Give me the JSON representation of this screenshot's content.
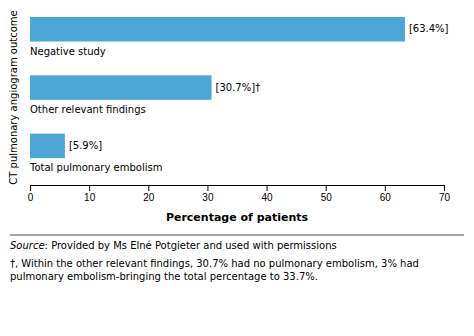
{
  "chart_data": {
    "type": "bar",
    "orientation": "horizontal",
    "categories": [
      "Negative study",
      "Other relevant findings",
      "Total pulmonary embolism"
    ],
    "values": [
      63.4,
      30.7,
      5.9
    ],
    "value_labels": [
      "[63.4%]",
      "[30.7%]†",
      "[5.9%]"
    ],
    "color": "#4DA6D5",
    "xlim": [
      0,
      70
    ],
    "xticks": [
      0,
      10,
      20,
      30,
      40,
      50,
      60,
      70
    ],
    "xlabel": "Percentage of patients",
    "ylabel": "CT pulmonary angiogram outcome",
    "grid": false,
    "annotations": [
      "Source",
      ": Provided by Ms Elné Potgieter and used with permissions",
      "†, Within the other relevant findings, 30.7% had no pulmonary embolism, 3% had pulmonary embolism-bringing the total percentage to 33.7%."
    ]
  }
}
